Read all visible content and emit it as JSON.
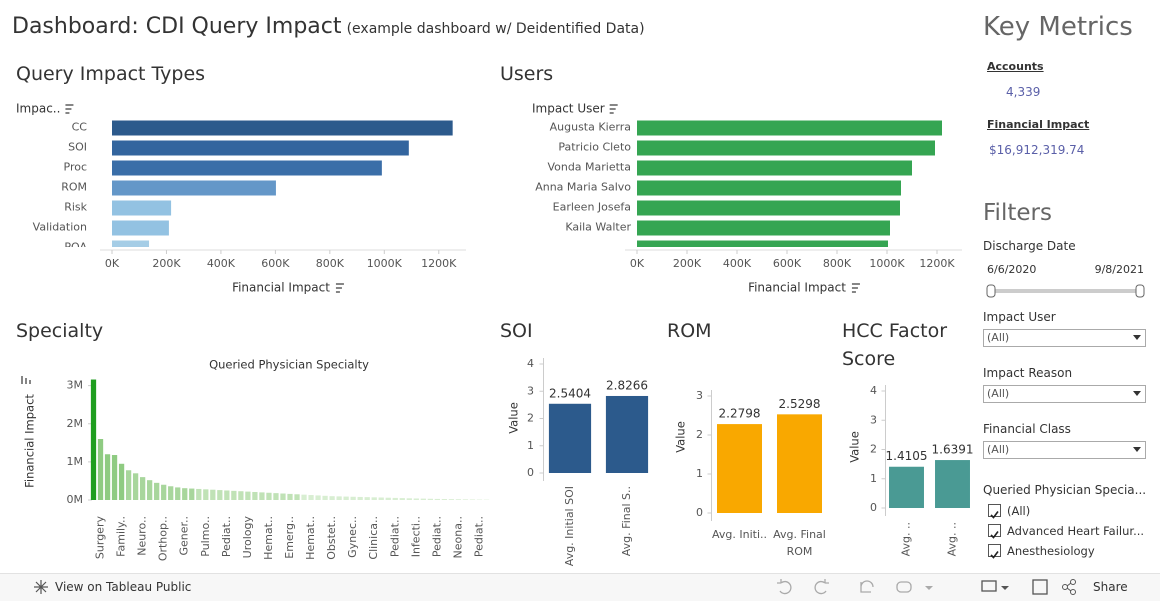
{
  "header": {
    "title": "Dashboard: CDI Query Impact",
    "subtitle": "(example dashboard w/ Deidentified Data)"
  },
  "chart_data": [
    {
      "type": "hbar",
      "title": "Query Impact Types",
      "y_label": "Impac..",
      "x_label": "Financial Impact",
      "categories": [
        "CC",
        "SOI",
        "Proc",
        "ROM",
        "Risk",
        "Validation",
        "POA"
      ],
      "values": [
        1251000,
        1090000,
        991000,
        602000,
        217000,
        209000,
        136000
      ],
      "colors": [
        "#2c5a8c",
        "#33659e",
        "#3a6ea8",
        "#6497c8",
        "#93c2e2",
        "#93c2e2",
        "#a5cde6"
      ],
      "xlim": [
        0,
        1300000
      ],
      "xticks": [
        {
          "value": 0,
          "label": "0K"
        },
        {
          "value": 200000,
          "label": "200K"
        },
        {
          "value": 400000,
          "label": "400K"
        },
        {
          "value": 600000,
          "label": "600K"
        },
        {
          "value": 800000,
          "label": "800K"
        },
        {
          "value": 1000000,
          "label": "1000K"
        },
        {
          "value": 1200000,
          "label": "1200K"
        }
      ]
    },
    {
      "type": "hbar",
      "title": "Users",
      "y_label": "Impact User",
      "x_label": "Financial Impact",
      "categories": [
        "Augusta Kierra",
        "Patricio Cleto",
        "Vonda Marietta",
        "Anna Maria Salvo",
        "Earleen Josefa",
        "Kaila Walter",
        null
      ],
      "values": [
        1220000,
        1192000,
        1100000,
        1056000,
        1052000,
        1012000,
        1004000
      ],
      "color": "#35a552",
      "xlim": [
        0,
        1300000
      ],
      "xticks": [
        {
          "value": 0,
          "label": "0K"
        },
        {
          "value": 200000,
          "label": "200K"
        },
        {
          "value": 400000,
          "label": "400K"
        },
        {
          "value": 600000,
          "label": "600K"
        },
        {
          "value": 800000,
          "label": "800K"
        },
        {
          "value": 1000000,
          "label": "1000K"
        },
        {
          "value": 1200000,
          "label": "1200K"
        }
      ]
    },
    {
      "type": "bar",
      "title": "Specialty",
      "subtitle": "Queried Physician Specialty",
      "y_label": "Financial Impact",
      "categories": [
        null,
        "Surgery",
        null,
        null,
        "Family..",
        null,
        null,
        "Neuro..",
        null,
        null,
        "Orthop..",
        null,
        null,
        "Gener..",
        null,
        null,
        "Pulmo..",
        null,
        null,
        "Pediat..",
        null,
        null,
        "Urology",
        null,
        null,
        "Hemat..",
        null,
        null,
        "Emerg..",
        null,
        null,
        "Hemat..",
        null,
        null,
        "Obstet..",
        null,
        null,
        "Gynec..",
        null,
        null,
        "Clinica..",
        null,
        null,
        "Pediat..",
        null,
        null,
        "Infecti..",
        null,
        null,
        "Pediat..",
        null,
        null,
        "Neona..",
        null,
        null,
        "Pediat..",
        null
      ],
      "values": [
        3160000,
        1600000,
        1200000,
        1180000,
        950000,
        780000,
        700000,
        600000,
        520000,
        450000,
        400000,
        360000,
        330000,
        310000,
        300000,
        290000,
        280000,
        270000,
        260000,
        250000,
        240000,
        230000,
        220000,
        210000,
        200000,
        190000,
        180000,
        170000,
        160000,
        150000,
        140000,
        130000,
        120000,
        110000,
        100000,
        95000,
        90000,
        85000,
        80000,
        75000,
        70000,
        65000,
        60000,
        55000,
        50000,
        45000,
        40000,
        36000,
        32000,
        28000,
        25000,
        22000,
        19000,
        16000,
        13000,
        10000,
        8000
      ],
      "colors": [
        "#1f9e1f",
        "#8fcb82",
        "#8fcb82",
        "#8fcb82",
        "#8fcb82",
        "#a8d69c",
        "#a8d69c",
        "#a8d69c",
        "#a8d69c",
        "#a8d69c",
        "#a8d69c",
        "#a8d69c",
        "#a8d69c",
        "#a8d69c",
        "#a8d69c",
        "#c0e2b6",
        "#c0e2b6",
        "#c0e2b6",
        "#c0e2b6",
        "#c0e2b6",
        "#c0e2b6",
        "#c0e2b6",
        "#c0e2b6",
        "#c0e2b6",
        "#c0e2b6",
        "#c0e2b6",
        "#c0e2b6",
        "#c0e2b6",
        "#c0e2b6",
        "#c0e2b6",
        "#d8eed2",
        "#d8eed2",
        "#d8eed2",
        "#d8eed2",
        "#d8eed2",
        "#d8eed2",
        "#d8eed2",
        "#d8eed2",
        "#d8eed2",
        "#d8eed2",
        "#d8eed2",
        "#d8eed2",
        "#d8eed2",
        "#d8eed2",
        "#d8eed2",
        "#d8eed2",
        "#d8eed2",
        "#d8eed2",
        "#d8eed2",
        "#d8eed2",
        "#d8eed2",
        "#d8eed2",
        "#d8eed2",
        "#d8eed2",
        "#d8eed2",
        "#d8eed2",
        "#d8eed2"
      ],
      "ylim": [
        0,
        3200000
      ],
      "yticks": [
        {
          "value": 0,
          "label": "0M"
        },
        {
          "value": 1000000,
          "label": "1M"
        },
        {
          "value": 2000000,
          "label": "2M"
        },
        {
          "value": 3000000,
          "label": "3M"
        }
      ]
    },
    {
      "type": "bar",
      "title": "SOI",
      "y_label": "Value",
      "categories": [
        "Avg. Initial SOI",
        "Avg. Final S.."
      ],
      "values": [
        2.5404,
        2.8266
      ],
      "color": "#2c5a8c",
      "ylim": [
        0,
        4
      ],
      "yticks": [
        0,
        1,
        2,
        3,
        4
      ]
    },
    {
      "type": "bar",
      "title": "ROM",
      "y_label": "Value",
      "categories": [
        "Avg. Initi..",
        "Avg. Final ROM"
      ],
      "values": [
        2.2798,
        2.5298
      ],
      "color": "#f9a800",
      "ylim": [
        0,
        3
      ],
      "yticks": [
        0,
        1,
        2,
        3
      ]
    },
    {
      "type": "bar",
      "title": "HCC Factor Score",
      "y_label": "Value",
      "categories": [
        "Avg. ..",
        "Avg. .."
      ],
      "values": [
        1.4105,
        1.6391
      ],
      "color": "#4a9a94",
      "ylim": [
        0,
        4
      ],
      "yticks": [
        0,
        1,
        2,
        3,
        4
      ]
    }
  ],
  "key_metrics": {
    "title": "Key Metrics",
    "items": [
      {
        "label": "Accounts",
        "value": "4,339"
      },
      {
        "label": "Financial Impact",
        "value": "$16,912,319.74"
      }
    ]
  },
  "filters": {
    "title": "Filters",
    "discharge_date": {
      "label": "Discharge Date",
      "start": "6/6/2020",
      "end": "9/8/2021"
    },
    "dropdowns": [
      {
        "label": "Impact User",
        "value": "(All)"
      },
      {
        "label": "Impact Reason",
        "value": "(All)"
      },
      {
        "label": "Financial Class",
        "value": "(All)"
      }
    ],
    "checklist": {
      "label": "Queried Physician Specia...",
      "options": [
        "(All)",
        "Advanced Heart Failur...",
        "Anesthesiology"
      ]
    }
  },
  "toolbar": {
    "view_link": "View on Tableau Public",
    "share": "Share"
  }
}
